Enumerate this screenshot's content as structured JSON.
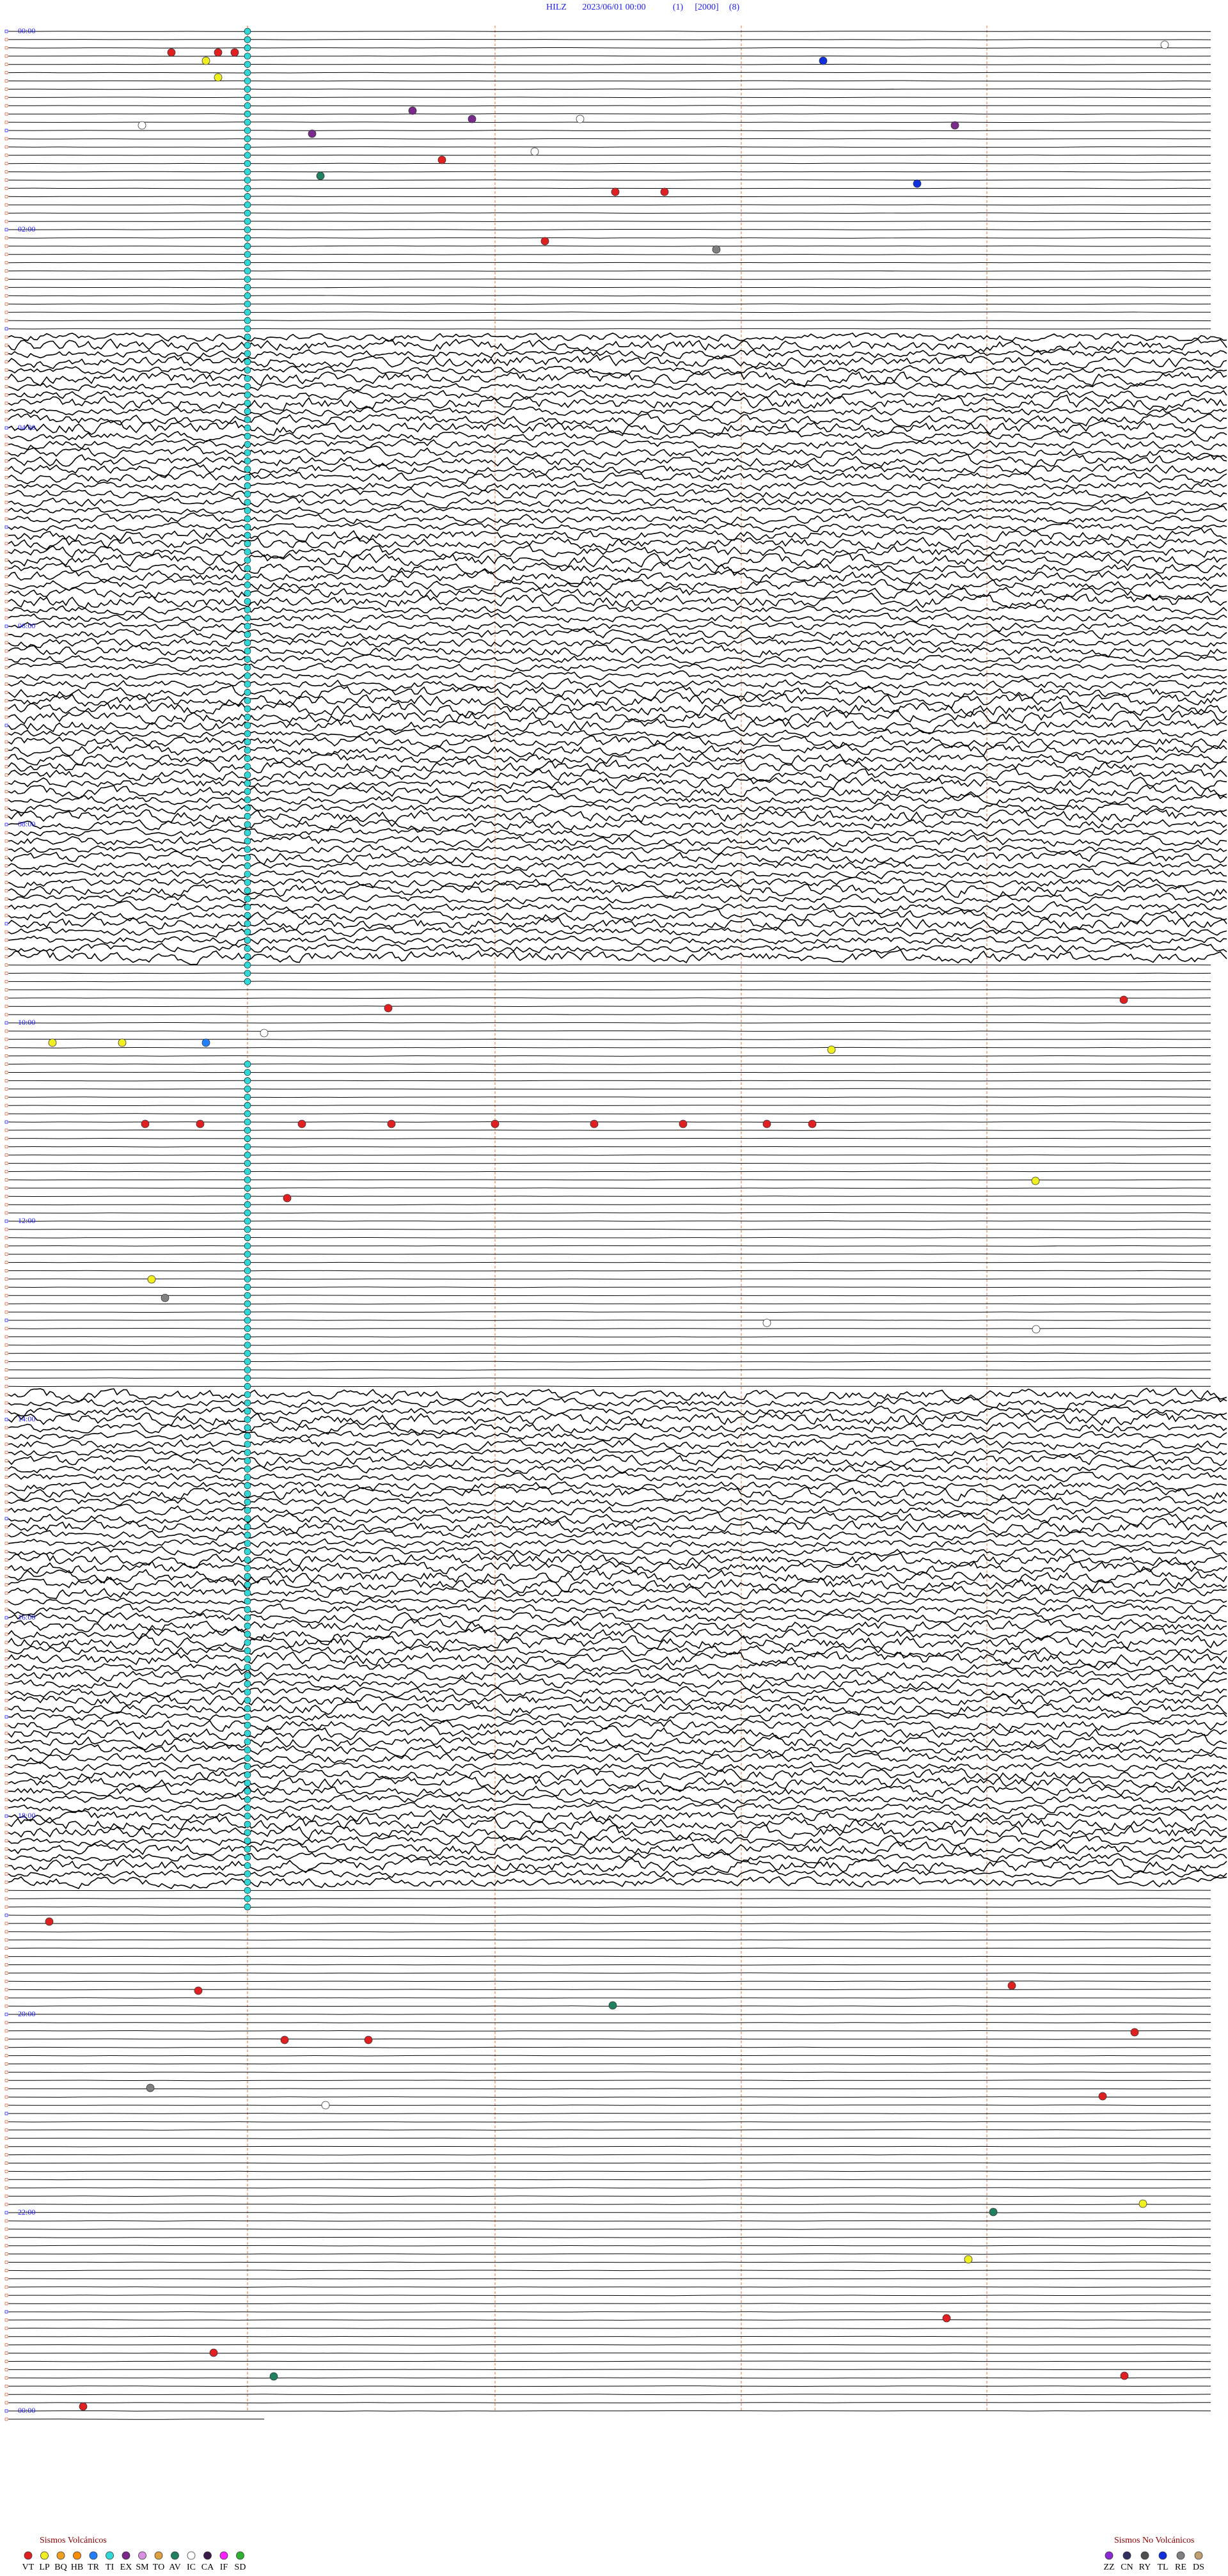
{
  "header": {
    "station": "HILZ",
    "datetime": "2023/06/01 00:00",
    "field1": "(1)",
    "field2": "[2000]",
    "field3": "(8)"
  },
  "hour_labels": [
    "00:00",
    "02:00",
    "04:00",
    "06:00",
    "08:00",
    "10:00",
    "12:00",
    "14:00",
    "16:00",
    "18:00",
    "20:00",
    "22:00",
    "00:00"
  ],
  "legend": {
    "volcanic": {
      "title": "Sismos Volcánicos",
      "items": [
        {
          "code": "VT",
          "color": "#e02020"
        },
        {
          "code": "LP",
          "color": "#f0f020"
        },
        {
          "code": "BQ",
          "color": "#f0a020"
        },
        {
          "code": "HB",
          "color": "#ff8c00"
        },
        {
          "code": "TR",
          "color": "#2080ff"
        },
        {
          "code": "TI",
          "color": "#30d8d8"
        },
        {
          "code": "EX",
          "color": "#7a2a8a"
        },
        {
          "code": "SM",
          "color": "#d890e0"
        },
        {
          "code": "TO",
          "color": "#e0a040"
        },
        {
          "code": "AV",
          "color": "#208060"
        },
        {
          "code": "IC",
          "color": "#ffffff"
        },
        {
          "code": "CA",
          "color": "#3a1a4a"
        },
        {
          "code": "IF",
          "color": "#ff20ff"
        },
        {
          "code": "SD",
          "color": "#30b030"
        }
      ]
    },
    "non_volcanic": {
      "title": "Sismos No Volcánicos",
      "items": [
        {
          "code": "ZZ",
          "color": "#8a2ad0"
        },
        {
          "code": "CN",
          "color": "#303060"
        },
        {
          "code": "RY",
          "color": "#505050"
        },
        {
          "code": "TL",
          "color": "#1030e0"
        },
        {
          "code": "RE",
          "color": "#808080"
        },
        {
          "code": "DS",
          "color": "#c0a070"
        }
      ]
    }
  }
}
